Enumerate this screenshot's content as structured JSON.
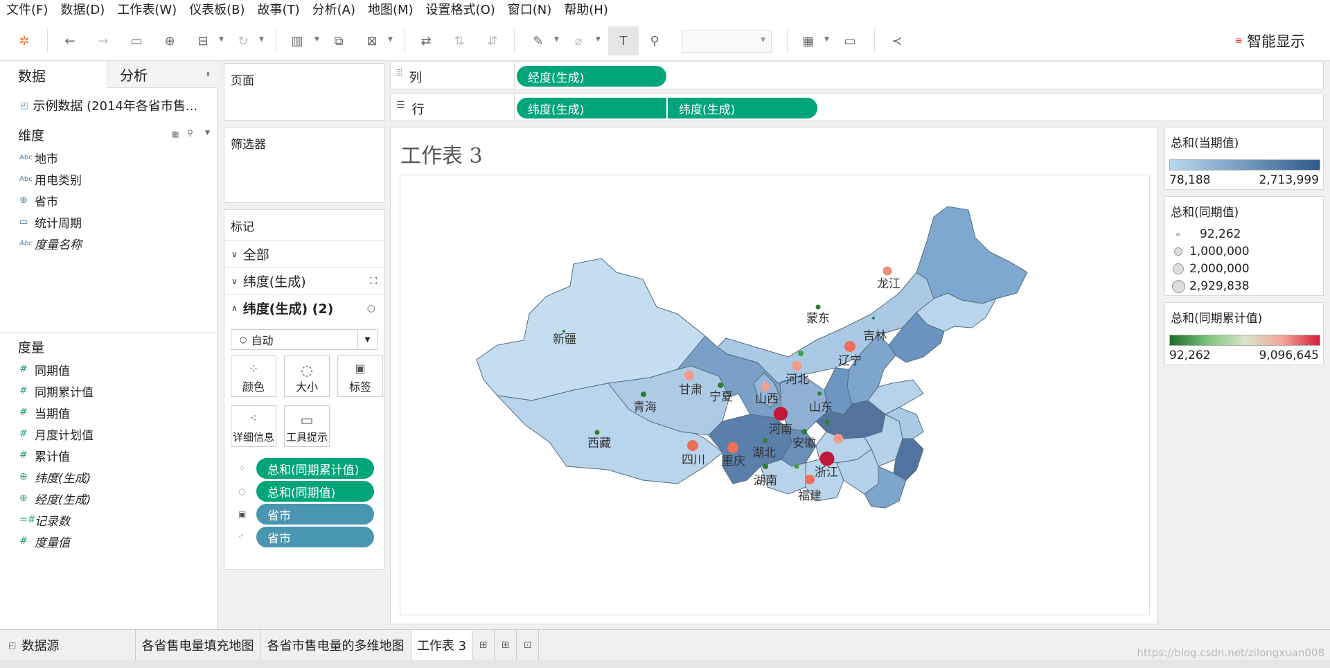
{
  "menu": [
    "文件(F)",
    "数据(D)",
    "工作表(W)",
    "仪表板(B)",
    "故事(T)",
    "分析(A)",
    "地图(M)",
    "设置格式(O)",
    "窗口(N)",
    "帮助(H)"
  ],
  "toolbar": {
    "smart_label": "智能显示"
  },
  "left": {
    "tab_data": "数据",
    "tab_analysis": "分析",
    "datasource": "示例数据 (2014年各省市售...",
    "dims_header": "维度",
    "dimensions": [
      {
        "icon": "Abc",
        "label": "地市",
        "italic": false
      },
      {
        "icon": "Abc",
        "label": "用电类别",
        "italic": false
      },
      {
        "icon": "globe",
        "label": "省市",
        "italic": false
      },
      {
        "icon": "calendar",
        "label": "统计周期",
        "italic": false
      },
      {
        "icon": "Abc",
        "label": "度量名称",
        "italic": true
      }
    ],
    "measures_header": "度量",
    "measures": [
      {
        "icon": "#",
        "label": "同期值",
        "italic": false
      },
      {
        "icon": "#",
        "label": "同期累计值",
        "italic": false
      },
      {
        "icon": "#",
        "label": "当期值",
        "italic": false
      },
      {
        "icon": "#",
        "label": "月度计划值",
        "italic": false
      },
      {
        "icon": "#",
        "label": "累计值",
        "italic": false
      },
      {
        "icon": "globe",
        "label": "纬度(生成)",
        "italic": true
      },
      {
        "icon": "globe",
        "label": "经度(生成)",
        "italic": true
      },
      {
        "icon": "=#",
        "label": "记录数",
        "italic": true
      },
      {
        "icon": "#",
        "label": "度量值",
        "italic": true
      }
    ]
  },
  "pages": {
    "title": "页面"
  },
  "filters": {
    "title": "筛选器"
  },
  "marks": {
    "title": "标记",
    "all": "全部",
    "lat1": "纬度(生成)",
    "lat2": "纬度(生成) (2)",
    "mark_type": "自动",
    "btn_color": "颜色",
    "btn_size": "大小",
    "btn_label": "标签",
    "btn_detail": "详细信息",
    "btn_tooltip": "工具提示",
    "pills": [
      "总和(同期累计值)",
      "总和(同期值)",
      "省市",
      "省市"
    ]
  },
  "shelves": {
    "columns_label": "列",
    "rows_label": "行",
    "columns_pill": "经度(生成)",
    "rows_pills": [
      "纬度(生成)",
      "纬度(生成)"
    ]
  },
  "sheet": {
    "title": "工作表 3"
  },
  "legends": {
    "current": {
      "title": "总和(当期值)",
      "min": "78,188",
      "max": "2,713,999"
    },
    "same": {
      "title": "总和(同期值)",
      "items": [
        "92,262",
        "1,000,000",
        "2,000,000",
        "2,929,838"
      ]
    },
    "cum": {
      "title": "总和(同期累计值)",
      "min": "92,262",
      "max": "9,096,645"
    }
  },
  "map_labels": {
    "xinjiang": "新疆",
    "xizang": "西藏",
    "qinghai": "青海",
    "gansu": "甘肃",
    "ningxia": "宁夏",
    "neimenggu": "蒙东",
    "heilongjiang": "龙江",
    "jilin": "吉林",
    "liaoning": "辽宁",
    "hebei": "河北",
    "shanxi": "山西",
    "shandong": "山东",
    "henan": "河南",
    "anhui": "安徽",
    "hubei": "湖北",
    "sichuan": "四川",
    "chongqing": "重庆",
    "hunan": "湖南",
    "zhejiang": "浙江",
    "fujian": "福建"
  },
  "colors": {
    "accent_green": "#00a57a",
    "pill_blue": "#4996b2"
  },
  "tabs": [
    "数据源",
    "各省售电量填充地图",
    "各省市售电量的多维地图",
    "工作表 3"
  ],
  "watermark": "https://blog.csdn.net/zilongxuan008"
}
